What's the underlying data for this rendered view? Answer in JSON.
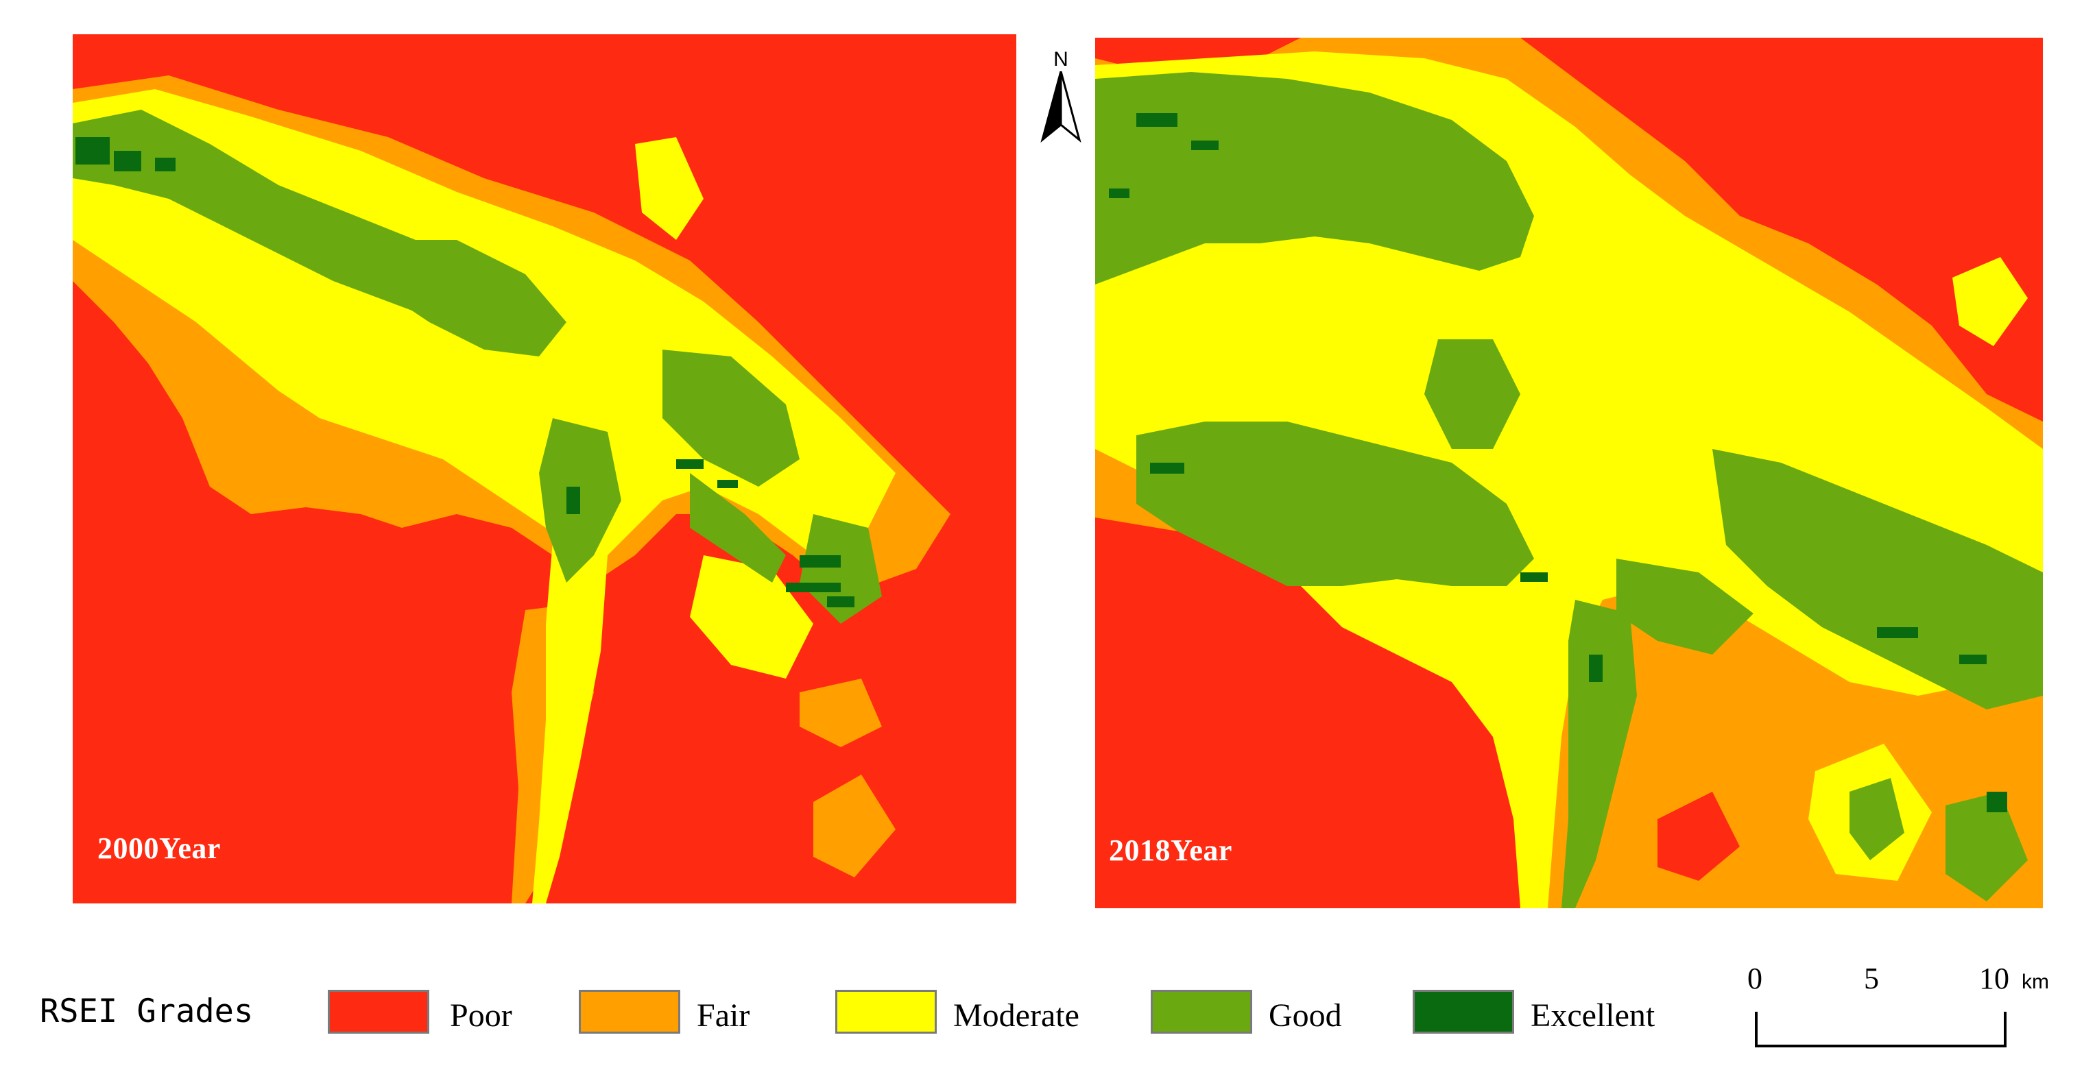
{
  "colors": {
    "poor": "#ff2a12",
    "fair": "#ffa000",
    "moderate": "#ffff00",
    "good": "#6aaa10",
    "excellent": "#0a6a10"
  },
  "maps": {
    "left": {
      "year_label": "2000Year"
    },
    "right": {
      "year_label": "2018Year"
    }
  },
  "north_arrow": {
    "letter": "N",
    "icon": "north-arrow-icon"
  },
  "legend": {
    "title": "RSEI Grades",
    "items": [
      {
        "label": "Poor",
        "color": "#ff2a12"
      },
      {
        "label": "Fair",
        "color": "#ffa000"
      },
      {
        "label": "Moderate",
        "color": "#ffff00"
      },
      {
        "label": "Good",
        "color": "#6aaa10"
      },
      {
        "label": "Excellent",
        "color": "#0a6a10"
      }
    ]
  },
  "scale_bar": {
    "ticks": [
      "0",
      "5",
      "10"
    ],
    "unit": "km"
  }
}
